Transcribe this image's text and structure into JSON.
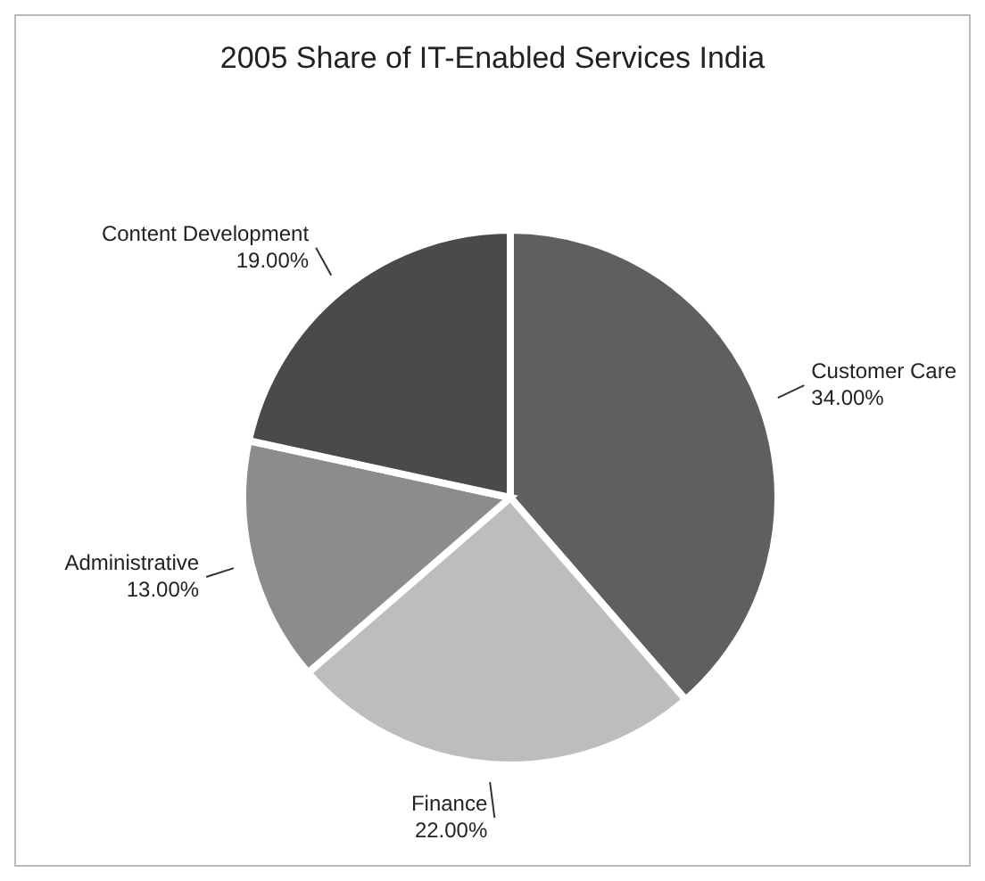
{
  "chart_data": {
    "type": "pie",
    "title": "2005 Share of IT-Enabled Services India",
    "categories": [
      "Customer Care",
      "Finance",
      "Administrative",
      "Content Development"
    ],
    "values": [
      34,
      22,
      13,
      19
    ],
    "colors": [
      "#5f5f5f",
      "#bdbdbd",
      "#8c8c8c",
      "#4a4a4a"
    ],
    "value_labels": [
      "34.00%",
      "22.00%",
      "13.00%",
      "19.00%"
    ],
    "legend": false
  }
}
